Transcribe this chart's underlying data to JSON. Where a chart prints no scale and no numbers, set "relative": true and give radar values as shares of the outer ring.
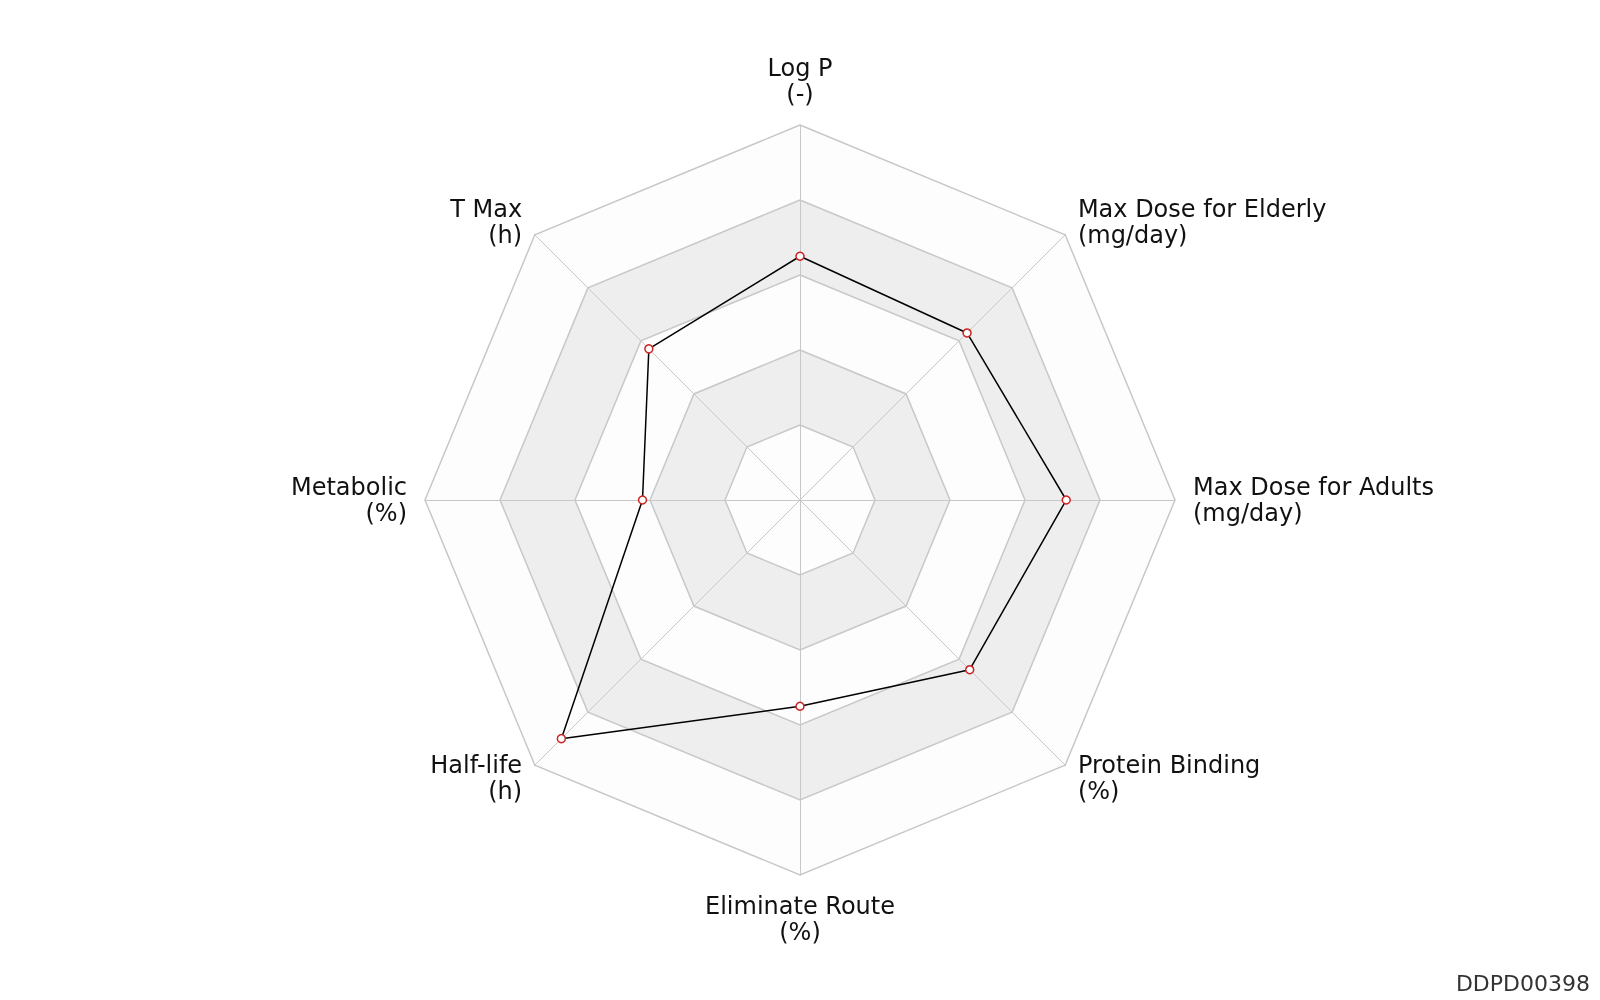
{
  "chart_data": {
    "type": "radar",
    "relative": true,
    "categories": [
      "Log P\n(-)",
      "Max Dose for Elderly\n(mg/day)",
      "Max Dose for Adults\n(mg/day)",
      "Protein Binding\n(%)",
      "Eliminate Route\n(%)",
      "Half-life\n(h)",
      "Metabolic\n(%)",
      "T Max\n(h)"
    ],
    "series": [
      {
        "color": "#000000",
        "values": [
          0.65,
          0.63,
          0.71,
          0.64,
          0.55,
          0.9,
          0.42,
          0.57
        ]
      }
    ],
    "marker": "circle",
    "annotations": [
      "DDPD00398"
    ]
  }
}
